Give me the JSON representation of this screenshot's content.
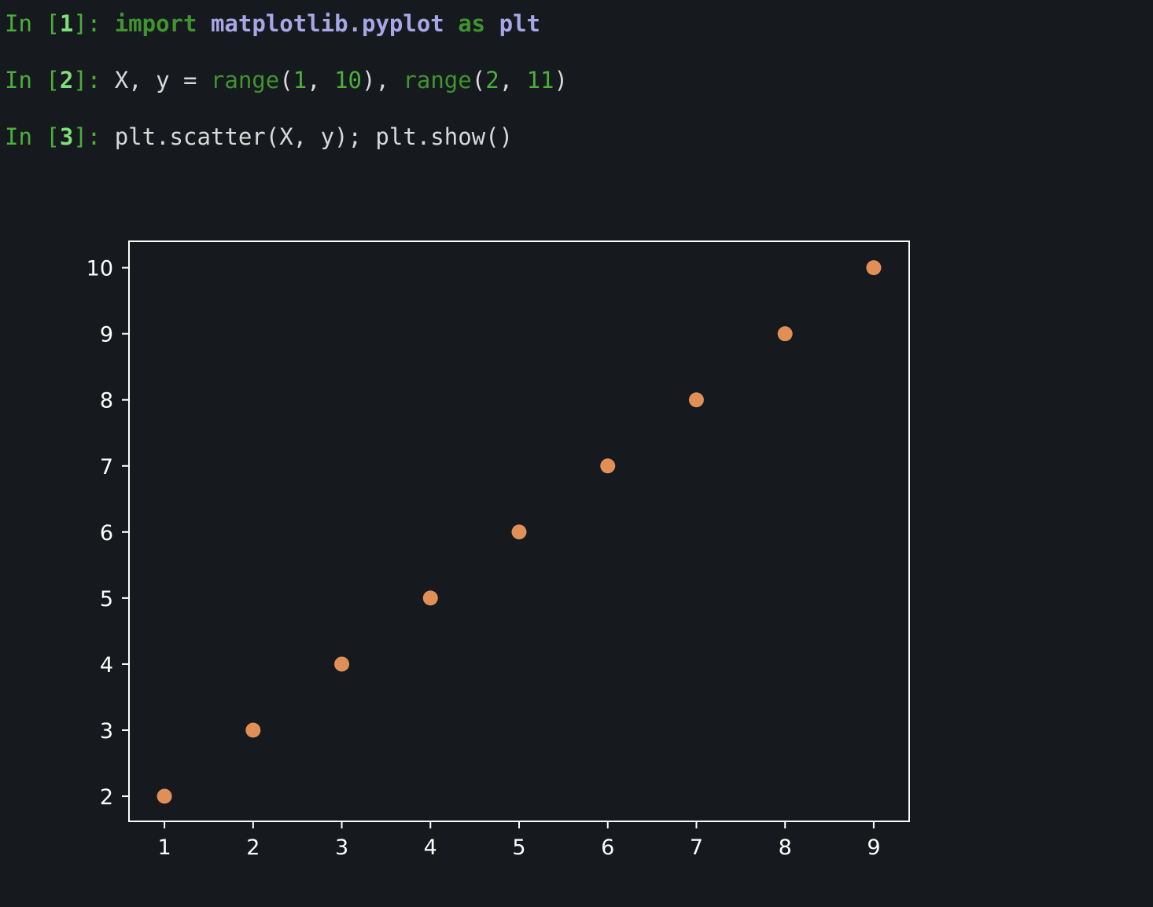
{
  "cells": [
    {
      "prompt_in": "In [",
      "prompt_num": "1",
      "prompt_close": "]: ",
      "tokens": [
        {
          "t": "import",
          "c": "kw"
        },
        {
          "t": " ",
          "c": "plain"
        },
        {
          "t": "matplotlib.pyplot",
          "c": "mod"
        },
        {
          "t": " ",
          "c": "plain"
        },
        {
          "t": "as",
          "c": "kw"
        },
        {
          "t": " ",
          "c": "plain"
        },
        {
          "t": "plt",
          "c": "mod"
        }
      ]
    },
    {
      "prompt_in": "In [",
      "prompt_num": "2",
      "prompt_close": "]: ",
      "tokens": [
        {
          "t": "X, y = ",
          "c": "plain"
        },
        {
          "t": "range",
          "c": "builtin"
        },
        {
          "t": "(",
          "c": "plain"
        },
        {
          "t": "1",
          "c": "num"
        },
        {
          "t": ", ",
          "c": "plain"
        },
        {
          "t": "10",
          "c": "num"
        },
        {
          "t": "), ",
          "c": "plain"
        },
        {
          "t": "range",
          "c": "builtin"
        },
        {
          "t": "(",
          "c": "plain"
        },
        {
          "t": "2",
          "c": "num"
        },
        {
          "t": ", ",
          "c": "plain"
        },
        {
          "t": "11",
          "c": "num"
        },
        {
          "t": ")",
          "c": "plain"
        }
      ]
    },
    {
      "prompt_in": "In [",
      "prompt_num": "3",
      "prompt_close": "]: ",
      "tokens": [
        {
          "t": "plt.scatter(X, y); plt.show()",
          "c": "plain"
        }
      ]
    }
  ],
  "colors": {
    "background": "#16191e",
    "marker": "#e08f57",
    "axes": "#ffffff"
  },
  "chart_data": {
    "type": "scatter",
    "title": "",
    "xlabel": "",
    "ylabel": "",
    "x": [
      1,
      2,
      3,
      4,
      5,
      6,
      7,
      8,
      9
    ],
    "y": [
      2,
      3,
      4,
      5,
      6,
      7,
      8,
      9,
      10
    ],
    "xlim": [
      0.6,
      9.4
    ],
    "ylim": [
      1.62,
      10.4
    ],
    "xticks": [
      1,
      2,
      3,
      4,
      5,
      6,
      7,
      8,
      9
    ],
    "yticks": [
      2,
      3,
      4,
      5,
      6,
      7,
      8,
      9,
      10
    ],
    "grid": false,
    "legend": "none"
  }
}
